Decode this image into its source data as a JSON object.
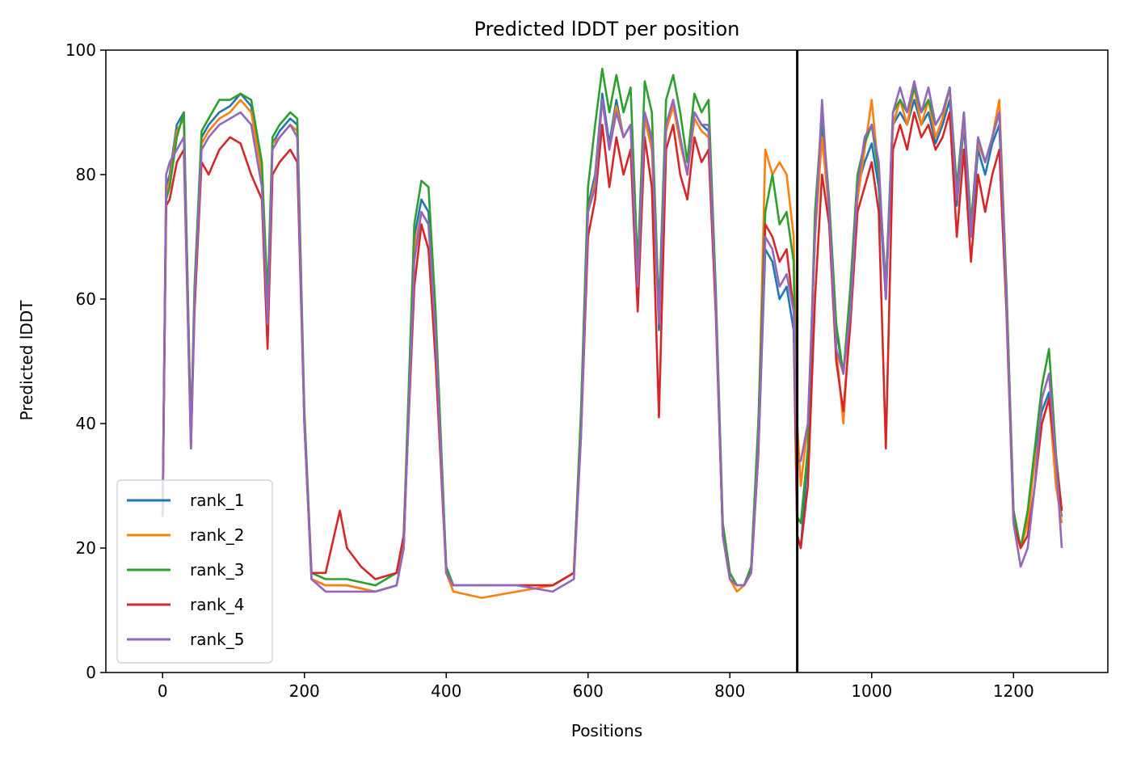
{
  "chart_data": {
    "type": "line",
    "title": "Predicted lDDT per position",
    "xlabel": "Positions",
    "ylabel": "Predicted lDDT",
    "xlim": [
      -80,
      1333
    ],
    "ylim": [
      0,
      100
    ],
    "xticks": [
      0,
      200,
      400,
      600,
      800,
      1000,
      1200
    ],
    "yticks": [
      0,
      20,
      40,
      60,
      80,
      100
    ],
    "grid": false,
    "legend_position": "lower-left",
    "chain_boundary_x": 895,
    "series": [
      {
        "name": "rank_1",
        "color": "#1f77b4",
        "x": [
          0,
          5,
          10,
          20,
          30,
          40,
          45,
          55,
          65,
          80,
          95,
          110,
          125,
          140,
          148,
          155,
          165,
          180,
          190,
          200,
          210,
          230,
          260,
          300,
          330,
          340,
          355,
          365,
          375,
          385,
          400,
          410,
          450,
          500,
          550,
          580,
          590,
          600,
          610,
          620,
          630,
          640,
          650,
          660,
          670,
          680,
          690,
          700,
          710,
          720,
          730,
          740,
          750,
          760,
          770,
          780,
          790,
          800,
          810,
          820,
          830,
          840,
          850,
          860,
          870,
          880,
          890,
          895,
          900,
          910,
          920,
          930,
          940,
          950,
          960,
          970,
          980,
          990,
          1000,
          1010,
          1020,
          1030,
          1040,
          1050,
          1060,
          1070,
          1080,
          1090,
          1100,
          1110,
          1120,
          1130,
          1140,
          1150,
          1160,
          1170,
          1180,
          1190,
          1200,
          1210,
          1220,
          1230,
          1240,
          1250,
          1260,
          1268
        ],
        "y": [
          25,
          78,
          80,
          88,
          90,
          38,
          60,
          86,
          88,
          90,
          91,
          93,
          91,
          80,
          58,
          85,
          87,
          89,
          88,
          40,
          15,
          14,
          14,
          13,
          14,
          20,
          70,
          76,
          74,
          55,
          17,
          14,
          14,
          14,
          14,
          16,
          40,
          75,
          80,
          93,
          85,
          92,
          86,
          88,
          60,
          90,
          85,
          55,
          88,
          92,
          86,
          80,
          90,
          88,
          87,
          60,
          22,
          15,
          14,
          14,
          16,
          35,
          68,
          66,
          60,
          62,
          55,
          22,
          20,
          35,
          72,
          88,
          75,
          55,
          48,
          60,
          78,
          82,
          85,
          78,
          60,
          88,
          90,
          88,
          92,
          88,
          90,
          85,
          88,
          92,
          75,
          88,
          70,
          84,
          80,
          85,
          88,
          60,
          25,
          20,
          25,
          35,
          42,
          45,
          30,
          25
        ]
      },
      {
        "name": "rank_2",
        "color": "#ff7f0e",
        "x": [
          0,
          5,
          10,
          20,
          30,
          40,
          45,
          55,
          65,
          80,
          95,
          110,
          125,
          140,
          148,
          155,
          165,
          180,
          190,
          200,
          210,
          230,
          260,
          300,
          330,
          340,
          355,
          365,
          375,
          385,
          400,
          410,
          450,
          500,
          550,
          580,
          590,
          600,
          610,
          620,
          630,
          640,
          650,
          660,
          670,
          680,
          690,
          700,
          710,
          720,
          730,
          740,
          750,
          760,
          770,
          780,
          790,
          800,
          810,
          820,
          830,
          840,
          850,
          860,
          870,
          880,
          890,
          895,
          900,
          910,
          920,
          930,
          940,
          950,
          960,
          970,
          980,
          990,
          1000,
          1010,
          1020,
          1030,
          1040,
          1050,
          1060,
          1070,
          1080,
          1090,
          1100,
          1110,
          1120,
          1130,
          1140,
          1150,
          1160,
          1170,
          1180,
          1190,
          1200,
          1210,
          1220,
          1230,
          1240,
          1250,
          1260,
          1268
        ],
        "y": [
          25,
          77,
          79,
          87,
          89,
          37,
          60,
          85,
          87,
          89,
          90,
          92,
          90,
          80,
          58,
          85,
          86,
          88,
          87,
          40,
          15,
          14,
          14,
          13,
          14,
          20,
          68,
          74,
          72,
          55,
          16,
          13,
          12,
          13,
          14,
          16,
          40,
          74,
          79,
          92,
          84,
          91,
          86,
          88,
          62,
          89,
          84,
          56,
          87,
          91,
          85,
          80,
          89,
          87,
          86,
          60,
          22,
          15,
          13,
          14,
          17,
          38,
          84,
          80,
          82,
          80,
          70,
          40,
          30,
          40,
          70,
          86,
          74,
          52,
          40,
          58,
          76,
          84,
          92,
          80,
          62,
          88,
          92,
          88,
          94,
          88,
          92,
          86,
          89,
          94,
          76,
          89,
          72,
          85,
          82,
          86,
          92,
          62,
          26,
          20,
          24,
          34,
          40,
          44,
          30,
          24
        ]
      },
      {
        "name": "rank_3",
        "color": "#2ca02c",
        "x": [
          0,
          5,
          10,
          20,
          30,
          40,
          45,
          55,
          65,
          80,
          95,
          110,
          125,
          140,
          148,
          155,
          165,
          180,
          190,
          200,
          210,
          230,
          260,
          300,
          330,
          340,
          355,
          365,
          375,
          385,
          400,
          410,
          450,
          500,
          550,
          580,
          590,
          600,
          610,
          620,
          630,
          640,
          650,
          660,
          670,
          680,
          690,
          700,
          710,
          720,
          730,
          740,
          750,
          760,
          770,
          780,
          790,
          800,
          810,
          820,
          830,
          840,
          850,
          860,
          870,
          880,
          890,
          895,
          900,
          910,
          920,
          930,
          940,
          950,
          960,
          970,
          980,
          990,
          1000,
          1010,
          1020,
          1030,
          1040,
          1050,
          1060,
          1070,
          1080,
          1090,
          1100,
          1110,
          1120,
          1130,
          1140,
          1150,
          1160,
          1170,
          1180,
          1190,
          1200,
          1210,
          1220,
          1230,
          1240,
          1250,
          1260,
          1268
        ],
        "y": [
          25,
          76,
          78,
          86,
          90,
          38,
          62,
          87,
          89,
          92,
          92,
          93,
          92,
          82,
          60,
          86,
          88,
          90,
          89,
          42,
          16,
          15,
          15,
          14,
          16,
          22,
          72,
          79,
          78,
          58,
          17,
          14,
          14,
          14,
          14,
          16,
          42,
          78,
          88,
          97,
          90,
          96,
          90,
          94,
          65,
          95,
          90,
          58,
          92,
          96,
          90,
          82,
          93,
          90,
          92,
          62,
          24,
          16,
          14,
          14,
          17,
          40,
          74,
          80,
          72,
          74,
          66,
          25,
          24,
          36,
          74,
          90,
          76,
          56,
          48,
          62,
          80,
          85,
          88,
          80,
          62,
          90,
          92,
          90,
          94,
          90,
          92,
          88,
          90,
          94,
          78,
          90,
          72,
          86,
          82,
          86,
          90,
          62,
          26,
          20,
          26,
          36,
          46,
          52,
          35,
          26
        ]
      },
      {
        "name": "rank_4",
        "color": "#d62728",
        "x": [
          0,
          5,
          10,
          20,
          30,
          40,
          45,
          55,
          65,
          80,
          95,
          110,
          125,
          140,
          148,
          155,
          165,
          180,
          190,
          200,
          210,
          230,
          250,
          260,
          280,
          300,
          330,
          340,
          355,
          365,
          375,
          385,
          400,
          410,
          450,
          500,
          550,
          580,
          590,
          600,
          610,
          620,
          630,
          640,
          650,
          660,
          670,
          680,
          690,
          700,
          710,
          720,
          730,
          740,
          750,
          760,
          770,
          780,
          790,
          800,
          810,
          820,
          830,
          840,
          850,
          860,
          870,
          880,
          890,
          895,
          900,
          910,
          920,
          930,
          940,
          950,
          960,
          970,
          980,
          990,
          1000,
          1010,
          1020,
          1030,
          1040,
          1050,
          1060,
          1070,
          1080,
          1090,
          1100,
          1110,
          1120,
          1130,
          1140,
          1150,
          1160,
          1170,
          1180,
          1190,
          1200,
          1210,
          1220,
          1230,
          1240,
          1250,
          1260,
          1268
        ],
        "y": [
          25,
          75,
          76,
          82,
          84,
          36,
          58,
          82,
          80,
          84,
          86,
          85,
          80,
          76,
          52,
          80,
          82,
          84,
          82,
          40,
          16,
          16,
          26,
          20,
          17,
          15,
          16,
          22,
          62,
          72,
          68,
          50,
          16,
          14,
          14,
          14,
          14,
          16,
          38,
          70,
          76,
          88,
          78,
          86,
          80,
          84,
          58,
          86,
          78,
          41,
          84,
          88,
          80,
          76,
          86,
          82,
          84,
          58,
          22,
          15,
          14,
          14,
          16,
          35,
          72,
          70,
          66,
          68,
          58,
          22,
          20,
          30,
          60,
          80,
          72,
          50,
          42,
          56,
          74,
          78,
          82,
          74,
          36,
          84,
          88,
          84,
          90,
          86,
          88,
          84,
          86,
          90,
          70,
          84,
          66,
          80,
          74,
          80,
          84,
          58,
          24,
          20,
          22,
          30,
          40,
          44,
          34,
          26
        ]
      },
      {
        "name": "rank_5",
        "color": "#9467bd",
        "x": [
          0,
          5,
          10,
          20,
          30,
          40,
          45,
          55,
          65,
          80,
          95,
          110,
          125,
          140,
          148,
          155,
          165,
          180,
          190,
          200,
          210,
          230,
          260,
          300,
          330,
          340,
          355,
          365,
          375,
          385,
          400,
          410,
          450,
          500,
          550,
          580,
          590,
          600,
          610,
          620,
          630,
          640,
          650,
          660,
          670,
          680,
          690,
          700,
          710,
          720,
          730,
          740,
          750,
          760,
          770,
          780,
          790,
          800,
          810,
          820,
          830,
          840,
          850,
          860,
          870,
          880,
          890,
          895,
          900,
          910,
          920,
          930,
          940,
          950,
          960,
          970,
          980,
          990,
          1000,
          1010,
          1020,
          1030,
          1040,
          1050,
          1060,
          1070,
          1080,
          1090,
          1100,
          1110,
          1120,
          1130,
          1140,
          1150,
          1160,
          1170,
          1180,
          1190,
          1200,
          1210,
          1220,
          1230,
          1240,
          1250,
          1260,
          1268
        ],
        "y": [
          25,
          80,
          82,
          84,
          86,
          36,
          60,
          84,
          86,
          88,
          89,
          90,
          88,
          78,
          56,
          84,
          86,
          88,
          86,
          40,
          15,
          13,
          13,
          13,
          14,
          20,
          66,
          74,
          72,
          54,
          16,
          14,
          14,
          14,
          13,
          15,
          38,
          74,
          78,
          92,
          84,
          90,
          86,
          88,
          62,
          90,
          86,
          56,
          88,
          92,
          86,
          80,
          90,
          88,
          88,
          60,
          22,
          15,
          14,
          14,
          16,
          36,
          70,
          68,
          62,
          64,
          58,
          34,
          34,
          40,
          70,
          92,
          74,
          52,
          48,
          58,
          78,
          86,
          88,
          82,
          60,
          90,
          94,
          90,
          95,
          90,
          94,
          88,
          90,
          94,
          76,
          90,
          70,
          86,
          82,
          86,
          90,
          60,
          24,
          17,
          20,
          30,
          44,
          48,
          34,
          20
        ]
      }
    ]
  }
}
